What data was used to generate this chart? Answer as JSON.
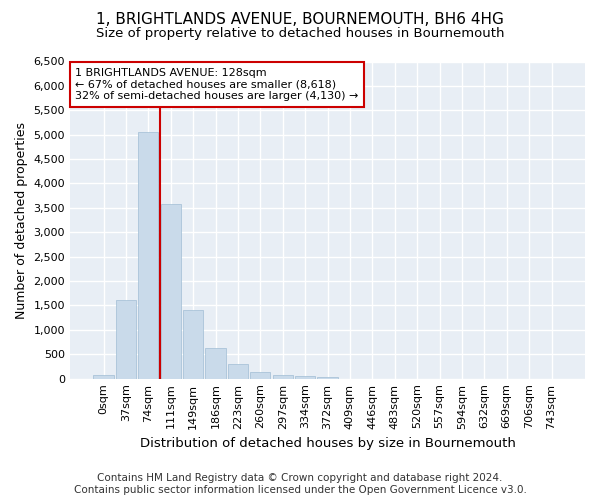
{
  "title": "1, BRIGHTLANDS AVENUE, BOURNEMOUTH, BH6 4HG",
  "subtitle": "Size of property relative to detached houses in Bournemouth",
  "xlabel": "Distribution of detached houses by size in Bournemouth",
  "ylabel": "Number of detached properties",
  "footer_line1": "Contains HM Land Registry data © Crown copyright and database right 2024.",
  "footer_line2": "Contains public sector information licensed under the Open Government Licence v3.0.",
  "bin_labels": [
    "0sqm",
    "37sqm",
    "74sqm",
    "111sqm",
    "149sqm",
    "186sqm",
    "223sqm",
    "260sqm",
    "297sqm",
    "334sqm",
    "372sqm",
    "409sqm",
    "446sqm",
    "483sqm",
    "520sqm",
    "557sqm",
    "594sqm",
    "632sqm",
    "669sqm",
    "706sqm",
    "743sqm"
  ],
  "bar_values": [
    75,
    1620,
    5060,
    3570,
    1400,
    620,
    300,
    140,
    85,
    55,
    30,
    0,
    0,
    0,
    0,
    0,
    0,
    0,
    0,
    0,
    0
  ],
  "bar_color": "#c9daea",
  "bar_edge_color": "#a0bdd4",
  "property_bin_index": 3,
  "vline_color": "#cc0000",
  "vline_x": 2.5,
  "annotation_text": "1 BRIGHTLANDS AVENUE: 128sqm\n← 67% of detached houses are smaller (8,618)\n32% of semi-detached houses are larger (4,130) →",
  "annotation_box_color": "#ffffff",
  "annotation_box_edge": "#cc0000",
  "ylim": [
    0,
    6500
  ],
  "yticks": [
    0,
    500,
    1000,
    1500,
    2000,
    2500,
    3000,
    3500,
    4000,
    4500,
    5000,
    5500,
    6000,
    6500
  ],
  "background_color": "#e8eef5",
  "grid_color": "#ffffff",
  "title_fontsize": 11,
  "subtitle_fontsize": 9.5,
  "axis_label_fontsize": 9,
  "tick_fontsize": 8,
  "footer_fontsize": 7.5
}
